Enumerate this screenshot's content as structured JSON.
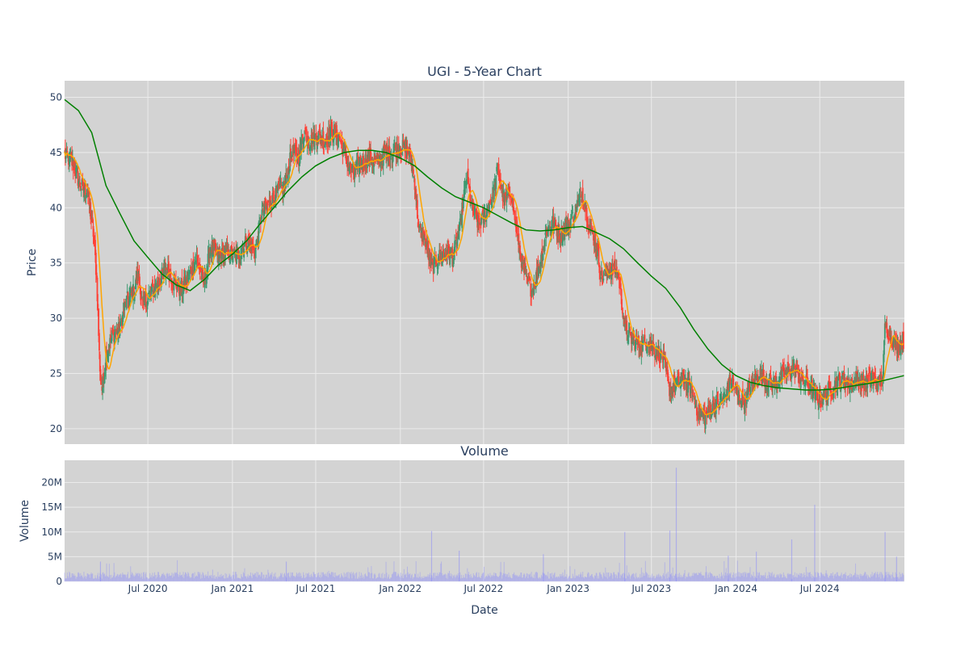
{
  "chart_data": {
    "type": "candlestick",
    "title": "UGI - 5-Year Chart",
    "colors": {
      "plot_bg": "#d3d3d3",
      "grid": "#ebebeb",
      "up": "#3d9970",
      "down": "#ff4136",
      "ma_short": "#ffa500",
      "ma_long": "#008000",
      "volume": "#8080ff",
      "text": "#2a3f5f"
    },
    "price_panel": {
      "ylabel": "Price",
      "ylim": [
        18.6,
        51.5
      ],
      "yticks": [
        20,
        25,
        30,
        35,
        40,
        45,
        50
      ]
    },
    "volume_panel": {
      "title": "Volume",
      "ylabel": "Volume",
      "ylim": [
        0,
        24500000
      ],
      "yticks": [
        0,
        5000000,
        10000000,
        15000000,
        20000000
      ],
      "ytick_labels": [
        "0",
        "5M",
        "10M",
        "15M",
        "20M"
      ]
    },
    "xaxis": {
      "label": "Date",
      "range": [
        "2020-01-02",
        "2025-01-01"
      ],
      "ticks": [
        {
          "date": "2020-07-01",
          "label": "Jul 2020"
        },
        {
          "date": "2021-01-01",
          "label": "Jan 2021"
        },
        {
          "date": "2021-07-01",
          "label": "Jul 2021"
        },
        {
          "date": "2022-01-01",
          "label": "Jan 2022"
        },
        {
          "date": "2022-07-01",
          "label": "Jul 2022"
        },
        {
          "date": "2023-01-01",
          "label": "Jan 2023"
        },
        {
          "date": "2023-07-01",
          "label": "Jul 2023"
        },
        {
          "date": "2024-01-01",
          "label": "Jan 2024"
        },
        {
          "date": "2024-07-01",
          "label": "Jul 2024"
        }
      ]
    },
    "price_path": [
      [
        "2020-01-02",
        44.8
      ],
      [
        "2020-01-20",
        44.0
      ],
      [
        "2020-02-05",
        42.0
      ],
      [
        "2020-02-20",
        41.6
      ],
      [
        "2020-03-05",
        37.5
      ],
      [
        "2020-03-12",
        33.5
      ],
      [
        "2020-03-18",
        26.0
      ],
      [
        "2020-03-23",
        23.5
      ],
      [
        "2020-04-01",
        26.5
      ],
      [
        "2020-04-15",
        28.5
      ],
      [
        "2020-05-01",
        29.0
      ],
      [
        "2020-05-15",
        31.5
      ],
      [
        "2020-06-01",
        32.5
      ],
      [
        "2020-06-10",
        34.0
      ],
      [
        "2020-06-20",
        31.0
      ],
      [
        "2020-07-01",
        32.0
      ],
      [
        "2020-07-20",
        33.0
      ],
      [
        "2020-08-10",
        34.5
      ],
      [
        "2020-08-25",
        33.5
      ],
      [
        "2020-09-10",
        32.5
      ],
      [
        "2020-09-25",
        33.5
      ],
      [
        "2020-10-15",
        35.5
      ],
      [
        "2020-10-30",
        33.0
      ],
      [
        "2020-11-15",
        36.5
      ],
      [
        "2020-12-01",
        35.5
      ],
      [
        "2020-12-20",
        36.0
      ],
      [
        "2021-01-10",
        35.5
      ],
      [
        "2021-02-01",
        37.0
      ],
      [
        "2021-02-20",
        36.0
      ],
      [
        "2021-03-05",
        39.5
      ],
      [
        "2021-03-25",
        40.5
      ],
      [
        "2021-04-10",
        41.5
      ],
      [
        "2021-04-25",
        42.0
      ],
      [
        "2021-05-10",
        45.0
      ],
      [
        "2021-05-25",
        44.5
      ],
      [
        "2021-06-05",
        47.0
      ],
      [
        "2021-06-20",
        46.0
      ],
      [
        "2021-07-05",
        46.5
      ],
      [
        "2021-07-20",
        46.0
      ],
      [
        "2021-08-05",
        47.0
      ],
      [
        "2021-08-20",
        46.5
      ],
      [
        "2021-09-05",
        44.5
      ],
      [
        "2021-09-20",
        43.0
      ],
      [
        "2021-10-05",
        44.0
      ],
      [
        "2021-10-25",
        44.5
      ],
      [
        "2021-11-10",
        44.0
      ],
      [
        "2021-11-25",
        44.8
      ],
      [
        "2021-12-10",
        45.0
      ],
      [
        "2022-01-01",
        45.5
      ],
      [
        "2022-01-20",
        45.0
      ],
      [
        "2022-02-01",
        42.5
      ],
      [
        "2022-02-10",
        38.0
      ],
      [
        "2022-02-25",
        37.0
      ],
      [
        "2022-03-10",
        34.5
      ],
      [
        "2022-03-25",
        35.5
      ],
      [
        "2022-04-15",
        36.0
      ],
      [
        "2022-04-25",
        35.5
      ],
      [
        "2022-05-10",
        38.0
      ],
      [
        "2022-05-25",
        43.0
      ],
      [
        "2022-06-05",
        40.0
      ],
      [
        "2022-06-20",
        38.5
      ],
      [
        "2022-07-01",
        39.0
      ],
      [
        "2022-07-20",
        41.0
      ],
      [
        "2022-08-01",
        43.5
      ],
      [
        "2022-08-15",
        40.5
      ],
      [
        "2022-08-30",
        41.5
      ],
      [
        "2022-09-15",
        36.5
      ],
      [
        "2022-10-01",
        33.5
      ],
      [
        "2022-10-15",
        32.5
      ],
      [
        "2022-11-01",
        35.0
      ],
      [
        "2022-11-15",
        38.0
      ],
      [
        "2022-12-01",
        38.5
      ],
      [
        "2022-12-15",
        37.5
      ],
      [
        "2023-01-01",
        38.5
      ],
      [
        "2023-01-15",
        39.5
      ],
      [
        "2023-02-01",
        41.5
      ],
      [
        "2023-02-15",
        38.5
      ],
      [
        "2023-03-01",
        37.0
      ],
      [
        "2023-03-15",
        33.5
      ],
      [
        "2023-04-01",
        34.5
      ],
      [
        "2023-04-20",
        34.0
      ],
      [
        "2023-05-05",
        29.0
      ],
      [
        "2023-05-20",
        28.0
      ],
      [
        "2023-06-10",
        27.5
      ],
      [
        "2023-06-25",
        28.0
      ],
      [
        "2023-07-10",
        27.0
      ],
      [
        "2023-07-25",
        26.5
      ],
      [
        "2023-08-10",
        23.5
      ],
      [
        "2023-08-25",
        24.0
      ],
      [
        "2023-09-10",
        24.5
      ],
      [
        "2023-09-25",
        23.5
      ],
      [
        "2023-10-10",
        21.5
      ],
      [
        "2023-10-25",
        21.0
      ],
      [
        "2023-11-10",
        22.0
      ],
      [
        "2023-11-25",
        22.5
      ],
      [
        "2023-12-10",
        23.0
      ],
      [
        "2023-12-20",
        24.5
      ],
      [
        "2024-01-05",
        23.0
      ],
      [
        "2024-01-20",
        22.5
      ],
      [
        "2024-02-05",
        24.0
      ],
      [
        "2024-02-20",
        25.0
      ],
      [
        "2024-03-05",
        24.5
      ],
      [
        "2024-03-20",
        24.0
      ],
      [
        "2024-04-05",
        24.5
      ],
      [
        "2024-04-20",
        25.0
      ],
      [
        "2024-05-05",
        25.5
      ],
      [
        "2024-05-20",
        24.5
      ],
      [
        "2024-06-05",
        24.0
      ],
      [
        "2024-06-20",
        23.0
      ],
      [
        "2024-07-05",
        22.5
      ],
      [
        "2024-07-20",
        23.5
      ],
      [
        "2024-08-05",
        24.0
      ],
      [
        "2024-08-20",
        24.5
      ],
      [
        "2024-09-05",
        24.0
      ],
      [
        "2024-09-20",
        24.5
      ],
      [
        "2024-10-05",
        24.0
      ],
      [
        "2024-10-25",
        24.5
      ],
      [
        "2024-11-05",
        24.0
      ],
      [
        "2024-11-15",
        24.5
      ],
      [
        "2024-11-20",
        29.5
      ],
      [
        "2024-12-01",
        28.5
      ],
      [
        "2024-12-15",
        27.5
      ],
      [
        "2024-12-31",
        28.0
      ]
    ],
    "ma_long_path": [
      [
        "2020-01-02",
        49.8
      ],
      [
        "2020-02-01",
        48.8
      ],
      [
        "2020-03-01",
        46.8
      ],
      [
        "2020-04-01",
        42.0
      ],
      [
        "2020-05-01",
        39.5
      ],
      [
        "2020-06-01",
        37.0
      ],
      [
        "2020-07-01",
        35.5
      ],
      [
        "2020-08-01",
        34.0
      ],
      [
        "2020-09-01",
        33.0
      ],
      [
        "2020-10-01",
        32.5
      ],
      [
        "2020-11-01",
        33.5
      ],
      [
        "2020-12-01",
        34.8
      ],
      [
        "2021-01-01",
        35.8
      ],
      [
        "2021-02-01",
        37.0
      ],
      [
        "2021-03-01",
        38.5
      ],
      [
        "2021-04-01",
        40.0
      ],
      [
        "2021-05-01",
        41.5
      ],
      [
        "2021-06-01",
        42.8
      ],
      [
        "2021-07-01",
        43.8
      ],
      [
        "2021-08-01",
        44.5
      ],
      [
        "2021-09-01",
        45.0
      ],
      [
        "2021-10-01",
        45.2
      ],
      [
        "2021-11-01",
        45.2
      ],
      [
        "2021-12-01",
        45.0
      ],
      [
        "2022-01-01",
        44.5
      ],
      [
        "2022-02-01",
        43.8
      ],
      [
        "2022-03-01",
        42.8
      ],
      [
        "2022-04-01",
        41.8
      ],
      [
        "2022-05-01",
        41.0
      ],
      [
        "2022-06-01",
        40.5
      ],
      [
        "2022-07-01",
        40.0
      ],
      [
        "2022-08-01",
        39.3
      ],
      [
        "2022-09-01",
        38.6
      ],
      [
        "2022-10-01",
        38.0
      ],
      [
        "2022-11-01",
        37.9
      ],
      [
        "2022-12-01",
        38.0
      ],
      [
        "2023-01-01",
        38.2
      ],
      [
        "2023-02-01",
        38.3
      ],
      [
        "2023-03-01",
        37.8
      ],
      [
        "2023-04-01",
        37.2
      ],
      [
        "2023-05-01",
        36.3
      ],
      [
        "2023-06-01",
        35.0
      ],
      [
        "2023-07-01",
        33.8
      ],
      [
        "2023-08-01",
        32.7
      ],
      [
        "2023-09-01",
        31.0
      ],
      [
        "2023-10-01",
        29.0
      ],
      [
        "2023-11-01",
        27.2
      ],
      [
        "2023-12-01",
        25.8
      ],
      [
        "2024-01-01",
        24.8
      ],
      [
        "2024-02-01",
        24.2
      ],
      [
        "2024-03-01",
        23.9
      ],
      [
        "2024-04-01",
        23.7
      ],
      [
        "2024-05-01",
        23.6
      ],
      [
        "2024-06-01",
        23.5
      ],
      [
        "2024-07-01",
        23.5
      ],
      [
        "2024-08-01",
        23.6
      ],
      [
        "2024-09-01",
        23.8
      ],
      [
        "2024-10-01",
        24.0
      ],
      [
        "2024-11-01",
        24.2
      ],
      [
        "2024-12-01",
        24.5
      ],
      [
        "2024-12-31",
        24.8
      ]
    ],
    "volume_spikes": [
      [
        "2020-03-20",
        4000000
      ],
      [
        "2021-04-28",
        4000000
      ],
      [
        "2022-03-10",
        10200000
      ],
      [
        "2022-05-09",
        6200000
      ],
      [
        "2022-11-08",
        5500000
      ],
      [
        "2023-05-04",
        10000000
      ],
      [
        "2023-08-10",
        10300000
      ],
      [
        "2023-08-24",
        23000000
      ],
      [
        "2023-12-15",
        5200000
      ],
      [
        "2024-02-14",
        6000000
      ],
      [
        "2024-05-01",
        8500000
      ],
      [
        "2024-06-20",
        15500000
      ],
      [
        "2024-11-20",
        10000000
      ],
      [
        "2024-12-15",
        5000000
      ]
    ],
    "volume_base": 1300000
  }
}
